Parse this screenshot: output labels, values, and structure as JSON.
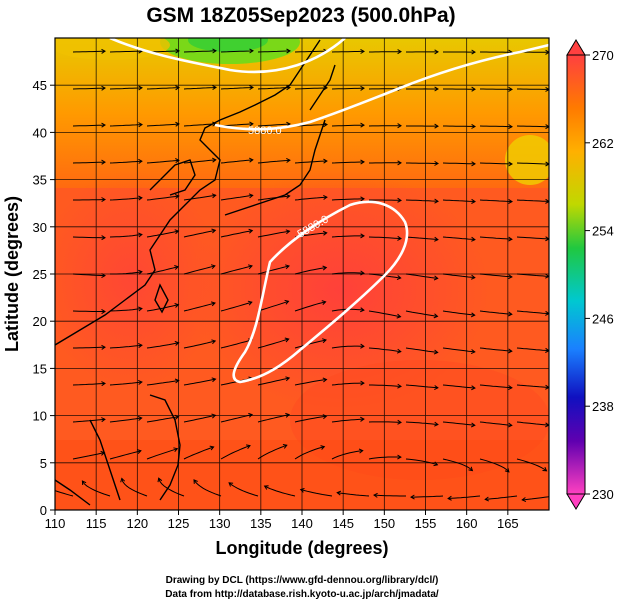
{
  "title": "GSM 18Z05Sep2023 (500.0hPa)",
  "xlabel": "Longitude (degrees)",
  "ylabel": "Latitude  (degrees)",
  "x_ticks": [
    "110",
    "115",
    "120",
    "125",
    "130",
    "135",
    "140",
    "145",
    "150",
    "155",
    "160",
    "165"
  ],
  "y_ticks": [
    "0",
    "5",
    "10",
    "15",
    "20",
    "25",
    "30",
    "35",
    "40",
    "45"
  ],
  "colorbar": {
    "ticks": [
      "270",
      "262",
      "254",
      "246",
      "238",
      "230"
    ],
    "colors": [
      "#ff4040",
      "#ff8000",
      "#e6c000",
      "#7ad000",
      "#10c060",
      "#00c8d8",
      "#1878ff",
      "#1010c8",
      "#8000b0",
      "#ff40c0"
    ]
  },
  "contour_labels": [
    "5880.0",
    "5880.0"
  ],
  "credits": {
    "line1": "Drawing by DCL (https://www.gfd-dennou.org/library/dcl/)",
    "line2": "Data from http://database.rish.kyoto-u.ac.jp/arch/jmadata/"
  },
  "map": {
    "extent": {
      "lon": [
        110,
        170
      ],
      "lat": [
        0,
        50
      ]
    },
    "field_colors": {
      "warm": "#ff4a30",
      "mid": "#ff6a10",
      "cool": "#f0a000",
      "cold": "#60d820"
    }
  }
}
